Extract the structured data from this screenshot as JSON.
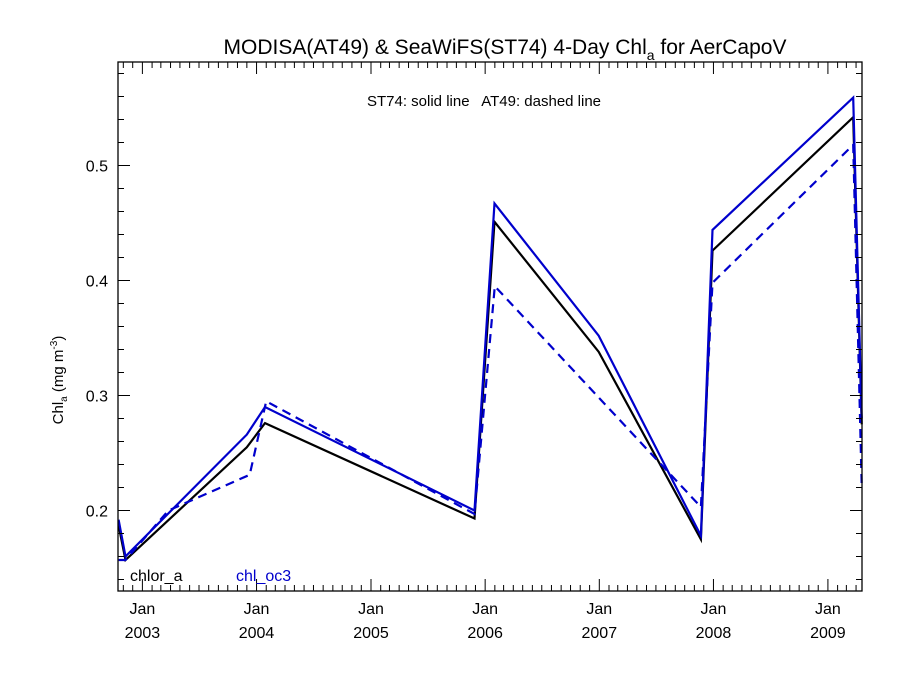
{
  "chart_data": {
    "type": "line",
    "title": {
      "pre": "MODISA(AT49) & SeaWiFS(ST74) 4-Day Chl",
      "sub": "a",
      "post": " for AerCapoV"
    },
    "subtitle": "ST74: solid line   AT49: dashed line",
    "ylabel": {
      "pre": "Chl",
      "sub": "a",
      "mid": " (mg m",
      "sup": "-3",
      "post": ")"
    },
    "xlim": [
      "2002-10-15",
      "2009-04-20"
    ],
    "ylim": [
      0.13,
      0.59
    ],
    "yticks": [
      {
        "value": 0.2,
        "label": "0.2"
      },
      {
        "value": 0.3,
        "label": "0.3"
      },
      {
        "value": 0.4,
        "label": "0.4"
      },
      {
        "value": 0.5,
        "label": "0.5"
      }
    ],
    "xticks": [
      {
        "date": "2003-01-01",
        "month": "Jan",
        "year": "2003"
      },
      {
        "date": "2004-01-01",
        "month": "Jan",
        "year": "2004"
      },
      {
        "date": "2005-01-01",
        "month": "Jan",
        "year": "2005"
      },
      {
        "date": "2006-01-01",
        "month": "Jan",
        "year": "2006"
      },
      {
        "date": "2007-01-01",
        "month": "Jan",
        "year": "2007"
      },
      {
        "date": "2008-01-01",
        "month": "Jan",
        "year": "2008"
      },
      {
        "date": "2009-01-01",
        "month": "Jan",
        "year": "2009"
      }
    ],
    "legend_placement": "bottom-left",
    "legend": [
      {
        "label": "chlor_a",
        "color": "#000000"
      },
      {
        "label": "chl_oc3",
        "color": "#0000cc"
      }
    ],
    "series": [
      {
        "label": "chlor_a",
        "sensor": "ST74",
        "color": "#000000",
        "dashed": false,
        "points": [
          [
            "2002-10-17",
            0.187
          ],
          [
            "2002-11-08",
            0.157
          ],
          [
            "2003-12-01",
            0.255
          ],
          [
            "2004-01-28",
            0.276
          ],
          [
            "2005-11-28",
            0.193
          ],
          [
            "2006-01-31",
            0.451
          ],
          [
            "2006-12-30",
            0.338
          ],
          [
            "2007-11-22",
            0.175
          ],
          [
            "2007-12-29",
            0.426
          ],
          [
            "2009-03-23",
            0.542
          ],
          [
            "2009-04-19",
            0.275
          ]
        ]
      },
      {
        "label": "chl_oc3",
        "sensor": "ST74",
        "color": "#0000cc",
        "dashed": false,
        "points": [
          [
            "2002-10-17",
            0.192
          ],
          [
            "2002-11-08",
            0.16
          ],
          [
            "2003-12-01",
            0.266
          ],
          [
            "2004-01-28",
            0.29
          ],
          [
            "2005-11-28",
            0.2
          ],
          [
            "2006-01-31",
            0.467
          ],
          [
            "2006-12-30",
            0.352
          ],
          [
            "2007-11-22",
            0.178
          ],
          [
            "2007-12-29",
            0.444
          ],
          [
            "2009-03-23",
            0.559
          ],
          [
            "2009-04-19",
            0.28
          ]
        ]
      },
      {
        "label": "chl_oc3",
        "sensor": "AT49",
        "color": "#0000cc",
        "dashed": true,
        "points": [
          [
            "2002-10-17",
            0.157
          ],
          [
            "2002-11-08",
            0.157
          ],
          [
            "2003-03-25",
            0.2
          ],
          [
            "2003-12-10",
            0.231
          ],
          [
            "2004-02-01",
            0.295
          ],
          [
            "2005-11-28",
            0.197
          ],
          [
            "2006-02-01",
            0.395
          ],
          [
            "2007-11-22",
            0.203
          ],
          [
            "2007-12-29",
            0.398
          ],
          [
            "2009-03-23",
            0.518
          ],
          [
            "2009-04-19",
            0.222
          ]
        ]
      }
    ]
  }
}
